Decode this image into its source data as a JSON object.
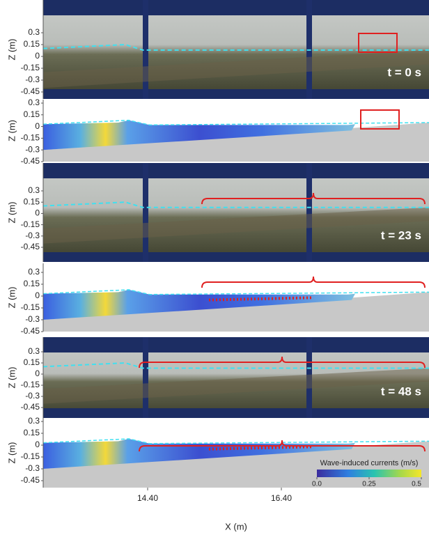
{
  "panels": [
    {
      "kind": "photo",
      "y_label": "Z (m)",
      "yticks": [
        0.3,
        0.15,
        0,
        -0.15,
        -0.3,
        -0.45
      ],
      "time": "t = 0 s"
    },
    {
      "kind": "field",
      "y_label": "Z (m)",
      "yticks": [
        0.3,
        0.15,
        0,
        -0.15,
        -0.3,
        -0.45
      ]
    },
    {
      "kind": "photo",
      "y_label": "Z (m)",
      "yticks": [
        0.3,
        0.15,
        0,
        -0.15,
        -0.3,
        -0.45
      ],
      "time": "t = 23 s"
    },
    {
      "kind": "field",
      "y_label": "Z (m)",
      "yticks": [
        0.3,
        0.15,
        0,
        -0.15,
        -0.3,
        -0.45
      ]
    },
    {
      "kind": "photo",
      "y_label": "Z (m)",
      "yticks": [
        0.3,
        0.15,
        0,
        -0.15,
        -0.3,
        -0.45
      ],
      "time": "t = 48 s"
    },
    {
      "kind": "field",
      "y_label": "Z (m)",
      "yticks": [
        0.3,
        0.15,
        0,
        -0.15,
        -0.3,
        -0.45
      ]
    }
  ],
  "x_axis": {
    "label": "X (m)",
    "ticks": [
      {
        "value": 14.4,
        "label": "14.40"
      },
      {
        "value": 16.4,
        "label": "16.40"
      }
    ]
  },
  "colorbar": {
    "title": "Wave-induced currents (m/s)",
    "ticks": [
      {
        "value": 0,
        "label": "0.0"
      },
      0.25,
      {
        "value": 0.5,
        "label": "0.5"
      }
    ]
  }
}
